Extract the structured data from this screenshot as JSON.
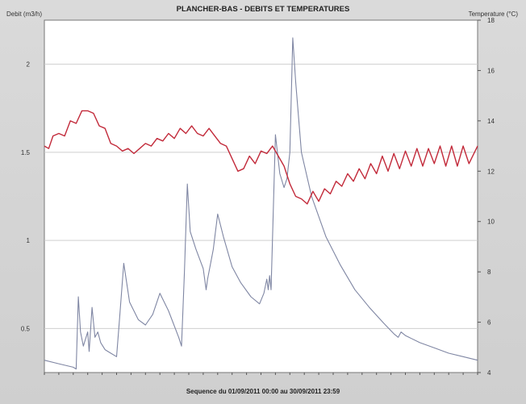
{
  "chart_data": {
    "type": "line",
    "title": "PLANCHER-BAS - DEBITS ET TEMPERATURES",
    "ylabel_left": "Debit (m3/h)",
    "ylabel_right": "Temperature (°C)",
    "footer": "Sequence du 01/09/2011 00:00 au 30/09/2011 23:59",
    "grid": true,
    "y_left": {
      "min": 0.25,
      "max": 2.25,
      "ticks": [
        "0.5",
        "1",
        "1.5",
        "2"
      ],
      "tick_values": [
        0.5,
        1,
        1.5,
        2
      ]
    },
    "y_right": {
      "min": 4,
      "max": 18,
      "ticks": [
        "4",
        "6",
        "8",
        "10",
        "12",
        "14",
        "16",
        "18"
      ],
      "tick_values": [
        4,
        6,
        8,
        10,
        12,
        14,
        16,
        18
      ]
    },
    "x_range": [
      0,
      30
    ],
    "series": [
      {
        "axis": "left",
        "color": "#7f86a3",
        "points": [
          [
            0,
            0.32
          ],
          [
            1,
            0.3
          ],
          [
            2,
            0.28
          ],
          [
            2.2,
            0.27
          ],
          [
            2.35,
            0.68
          ],
          [
            2.5,
            0.48
          ],
          [
            2.7,
            0.4
          ],
          [
            3.0,
            0.48
          ],
          [
            3.1,
            0.37
          ],
          [
            3.3,
            0.62
          ],
          [
            3.5,
            0.45
          ],
          [
            3.7,
            0.48
          ],
          [
            3.9,
            0.42
          ],
          [
            4.2,
            0.38
          ],
          [
            4.6,
            0.36
          ],
          [
            5.0,
            0.34
          ],
          [
            5.2,
            0.55
          ],
          [
            5.5,
            0.87
          ],
          [
            5.9,
            0.65
          ],
          [
            6.5,
            0.55
          ],
          [
            7.0,
            0.52
          ],
          [
            7.5,
            0.58
          ],
          [
            8.0,
            0.7
          ],
          [
            8.6,
            0.6
          ],
          [
            9.3,
            0.45
          ],
          [
            9.5,
            0.4
          ],
          [
            9.7,
            0.82
          ],
          [
            9.9,
            1.32
          ],
          [
            10.1,
            1.05
          ],
          [
            10.5,
            0.95
          ],
          [
            11.0,
            0.84
          ],
          [
            11.2,
            0.72
          ],
          [
            11.3,
            0.78
          ],
          [
            11.7,
            0.95
          ],
          [
            12.0,
            1.15
          ],
          [
            12.4,
            1.02
          ],
          [
            13.0,
            0.85
          ],
          [
            13.6,
            0.76
          ],
          [
            14.3,
            0.68
          ],
          [
            14.9,
            0.64
          ],
          [
            15.2,
            0.7
          ],
          [
            15.4,
            0.78
          ],
          [
            15.5,
            0.72
          ],
          [
            15.6,
            0.8
          ],
          [
            15.7,
            0.72
          ],
          [
            16.0,
            1.6
          ],
          [
            16.3,
            1.38
          ],
          [
            16.6,
            1.3
          ],
          [
            16.8,
            1.35
          ],
          [
            17.0,
            1.5
          ],
          [
            17.2,
            2.15
          ],
          [
            17.4,
            1.9
          ],
          [
            17.8,
            1.5
          ],
          [
            18.5,
            1.25
          ],
          [
            19.5,
            1.02
          ],
          [
            20.5,
            0.86
          ],
          [
            21.5,
            0.72
          ],
          [
            22.5,
            0.62
          ],
          [
            23.5,
            0.53
          ],
          [
            24.2,
            0.47
          ],
          [
            24.5,
            0.45
          ],
          [
            24.7,
            0.48
          ],
          [
            25.0,
            0.46
          ],
          [
            26.0,
            0.42
          ],
          [
            27.0,
            0.39
          ],
          [
            28.0,
            0.36
          ],
          [
            29.0,
            0.34
          ],
          [
            30.0,
            0.32
          ]
        ]
      },
      {
        "axis": "right",
        "color": "#c22a3a",
        "points": [
          [
            0.0,
            13.0
          ],
          [
            0.3,
            12.9
          ],
          [
            0.6,
            13.4
          ],
          [
            1.0,
            13.5
          ],
          [
            1.4,
            13.4
          ],
          [
            1.8,
            14.0
          ],
          [
            2.2,
            13.9
          ],
          [
            2.6,
            14.4
          ],
          [
            3.0,
            14.4
          ],
          [
            3.4,
            14.3
          ],
          [
            3.8,
            13.8
          ],
          [
            4.2,
            13.7
          ],
          [
            4.6,
            13.1
          ],
          [
            5.0,
            13.0
          ],
          [
            5.4,
            12.8
          ],
          [
            5.8,
            12.9
          ],
          [
            6.2,
            12.7
          ],
          [
            6.6,
            12.9
          ],
          [
            7.0,
            13.1
          ],
          [
            7.4,
            13.0
          ],
          [
            7.8,
            13.3
          ],
          [
            8.2,
            13.2
          ],
          [
            8.6,
            13.5
          ],
          [
            9.0,
            13.3
          ],
          [
            9.4,
            13.7
          ],
          [
            9.8,
            13.5
          ],
          [
            10.2,
            13.8
          ],
          [
            10.6,
            13.5
          ],
          [
            11.0,
            13.4
          ],
          [
            11.4,
            13.7
          ],
          [
            11.8,
            13.4
          ],
          [
            12.2,
            13.1
          ],
          [
            12.6,
            13.0
          ],
          [
            13.0,
            12.5
          ],
          [
            13.4,
            12.0
          ],
          [
            13.8,
            12.1
          ],
          [
            14.2,
            12.6
          ],
          [
            14.6,
            12.3
          ],
          [
            15.0,
            12.8
          ],
          [
            15.4,
            12.7
          ],
          [
            15.8,
            13.0
          ],
          [
            16.2,
            12.6
          ],
          [
            16.6,
            12.2
          ],
          [
            17.0,
            11.5
          ],
          [
            17.4,
            11.0
          ],
          [
            17.8,
            10.9
          ],
          [
            18.2,
            10.7
          ],
          [
            18.6,
            11.2
          ],
          [
            19.0,
            10.8
          ],
          [
            19.4,
            11.3
          ],
          [
            19.8,
            11.1
          ],
          [
            20.2,
            11.6
          ],
          [
            20.6,
            11.4
          ],
          [
            21.0,
            11.9
          ],
          [
            21.4,
            11.6
          ],
          [
            21.8,
            12.1
          ],
          [
            22.2,
            11.7
          ],
          [
            22.6,
            12.3
          ],
          [
            23.0,
            11.9
          ],
          [
            23.4,
            12.6
          ],
          [
            23.8,
            12.0
          ],
          [
            24.2,
            12.7
          ],
          [
            24.6,
            12.1
          ],
          [
            25.0,
            12.8
          ],
          [
            25.4,
            12.2
          ],
          [
            25.8,
            12.9
          ],
          [
            26.2,
            12.2
          ],
          [
            26.6,
            12.9
          ],
          [
            27.0,
            12.3
          ],
          [
            27.4,
            13.0
          ],
          [
            27.8,
            12.2
          ],
          [
            28.2,
            13.0
          ],
          [
            28.6,
            12.2
          ],
          [
            29.0,
            13.0
          ],
          [
            29.4,
            12.3
          ],
          [
            30.0,
            13.0
          ]
        ]
      }
    ]
  }
}
